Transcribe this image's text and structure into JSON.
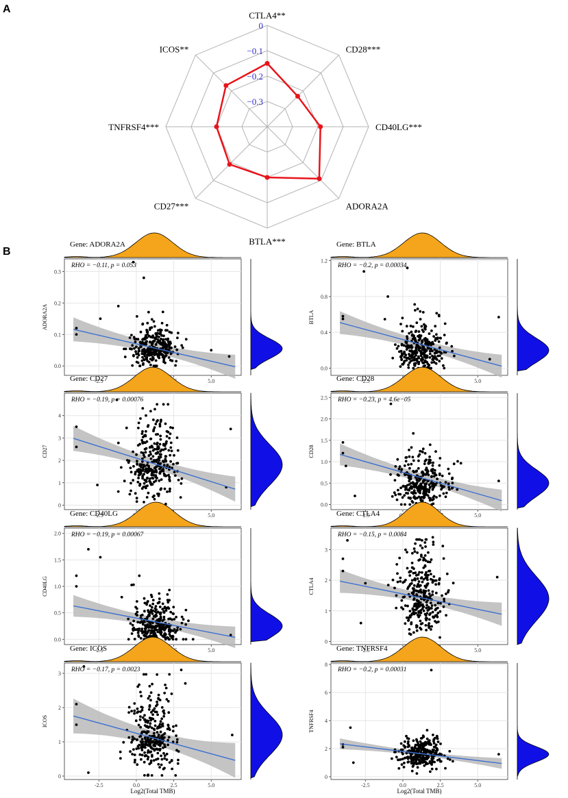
{
  "panel_labels": {
    "a": "A",
    "b": "B"
  },
  "colors": {
    "radar_line": "#e8141a",
    "radar_ring": "#b3b3b3",
    "radar_tick": "#2e2ecc",
    "density_top": "#f5a51b",
    "density_right": "#1010e6",
    "reg_line": "#3c6fd1",
    "ci_band": "#b5b5b5",
    "grid": "#e6e6e6"
  },
  "chart_data": [
    {
      "type": "radar",
      "panel": "A",
      "axes": [
        "CTLA4**",
        "CD28***",
        "CD40LG***",
        "ADORA2A",
        "BTLA***",
        "CD27***",
        "TNFRSF4***",
        "ICOS**"
      ],
      "values": [
        -0.15,
        -0.23,
        -0.19,
        -0.11,
        -0.2,
        -0.19,
        -0.2,
        -0.17
      ],
      "rlim": [
        -0.4,
        0
      ],
      "ticks": [
        0,
        -0.1,
        -0.2,
        -0.3
      ],
      "tick_labels": [
        "0",
        "−0.1",
        "−0.2",
        "−0.3"
      ]
    },
    {
      "type": "scatter",
      "panel": "B",
      "plots": [
        {
          "gene_label": "Gene: ADORA2A",
          "ylabel": "ADORA2A",
          "xlabel": "Log2(Total TMB)",
          "rho_label": "RHO = −0.11, p = 0.053",
          "xlim": [
            -4.8,
            7
          ],
          "ylim": [
            -0.03,
            0.34
          ],
          "xticks": [
            -2.5,
            0,
            2.5,
            5
          ],
          "xtick_labels": [
            "-2.5",
            "0.0",
            "2.5",
            "5.0"
          ],
          "yticks": [
            0,
            0.1,
            0.2,
            0.3
          ],
          "ytick_labels": [
            "0.0",
            "0.1",
            "0.2",
            "0.3"
          ],
          "reg": {
            "intercept": 0.07,
            "slope": -0.011,
            "x": [
              -4.2,
              6.6
            ],
            "ci": 0.015
          },
          "points": {
            "n": 300,
            "center": 1.2,
            "spread": 1.3,
            "y_mean": 0.055,
            "y_sd": 0.035,
            "y_min": 0.0
          },
          "outliers": [
            [
              -0.2,
              0.33
            ],
            [
              0.5,
              0.28
            ],
            [
              -4.0,
              0.1
            ],
            [
              -4.0,
              0.12
            ],
            [
              6.2,
              0.03
            ],
            [
              5.0,
              0.05
            ],
            [
              -1.2,
              0.19
            ],
            [
              -2.4,
              0.15
            ]
          ]
        },
        {
          "gene_label": "Gene: BTLA",
          "ylabel": "BTLA",
          "xlabel": "Log2(Total TMB)",
          "rho_label": "RHO = −0.2, p = 0.00034",
          "xlim": [
            -4.8,
            7
          ],
          "ylim": [
            -0.08,
            1.22
          ],
          "xticks": [
            -2.5,
            0,
            2.5,
            5
          ],
          "xtick_labels": [
            "-2.5",
            "0.0",
            "2.5",
            "5.0"
          ],
          "yticks": [
            0,
            0.4,
            0.8,
            1.2
          ],
          "ytick_labels": [
            "0.0",
            "0.4",
            "0.8",
            "1.2"
          ],
          "reg": {
            "intercept": 0.32,
            "slope": -0.045,
            "x": [
              -4.2,
              6.6
            ],
            "ci": 0.05
          },
          "points": {
            "n": 300,
            "center": 1.3,
            "spread": 1.3,
            "y_mean": 0.2,
            "y_sd": 0.15,
            "y_min": 0.0
          },
          "outliers": [
            [
              -4.0,
              0.58
            ],
            [
              -4.0,
              0.55
            ],
            [
              -2.6,
              1.08
            ],
            [
              6.4,
              0.57
            ],
            [
              -1.0,
              0.8
            ],
            [
              0.3,
              1.12
            ],
            [
              5.8,
              0.1
            ]
          ]
        },
        {
          "gene_label": "Gene: CD27",
          "ylabel": "CD27",
          "xlabel": "Log2(Total TMB)",
          "rho_label": "RHO = −0.19, p = 0.00076",
          "xlim": [
            -4.8,
            7
          ],
          "ylim": [
            -0.2,
            5.0
          ],
          "xticks": [
            -2.5,
            0,
            2.5,
            5
          ],
          "xtick_labels": [
            "-2.5",
            "0.0",
            "2.5",
            "5.0"
          ],
          "yticks": [
            0,
            1,
            2,
            3,
            4
          ],
          "ytick_labels": [
            "0",
            "1",
            "2",
            "3",
            "4"
          ],
          "reg": {
            "intercept": 2.1,
            "slope": -0.21,
            "x": [
              -4.2,
              6.6
            ],
            "ci": 0.22
          },
          "points": {
            "n": 300,
            "center": 1.1,
            "spread": 1.3,
            "y_mean": 1.8,
            "y_sd": 1.0,
            "y_min": 0.05
          },
          "outliers": [
            [
              -4.0,
              3.5
            ],
            [
              -4.0,
              2.6
            ],
            [
              -2.6,
              0.9
            ],
            [
              6.3,
              3.4
            ],
            [
              -1.3,
              4.7
            ],
            [
              6.0,
              0.8
            ]
          ]
        },
        {
          "gene_label": "Gene: CD28",
          "ylabel": "CD28",
          "xlabel": "Log2(Total TMB)",
          "rho_label": "RHO = −0.23, p = 4.6e−05",
          "xlim": [
            -4.8,
            7
          ],
          "ylim": [
            -0.12,
            2.6
          ],
          "xticks": [
            -2.5,
            0,
            2.5,
            5
          ],
          "xtick_labels": [
            "-2.5",
            "0.0",
            "2.5",
            "5.0"
          ],
          "yticks": [
            0,
            0.5,
            1,
            1.5,
            2,
            2.5
          ],
          "ytick_labels": [
            "0.0",
            "0.5",
            "1.0",
            "1.5",
            "2.0",
            "2.5"
          ],
          "reg": {
            "intercept": 0.75,
            "slope": -0.1,
            "x": [
              -4.2,
              6.6
            ],
            "ci": 0.1
          },
          "points": {
            "n": 300,
            "center": 1.3,
            "spread": 1.3,
            "y_mean": 0.5,
            "y_sd": 0.35,
            "y_min": 0.0
          },
          "outliers": [
            [
              -4.0,
              1.45
            ],
            [
              -4.0,
              1.2
            ],
            [
              -3.8,
              0.9
            ],
            [
              -0.8,
              2.35
            ],
            [
              6.4,
              0.55
            ],
            [
              -3.2,
              0.2
            ]
          ]
        },
        {
          "gene_label": "Gene: CD40LG",
          "ylabel": "CD40LG",
          "xlabel": "Log2(Total TMB)",
          "rho_label": "RHO = −0.19, p = 0.00067",
          "xlim": [
            -4.8,
            7
          ],
          "ylim": [
            -0.1,
            2.1
          ],
          "xticks": [
            -2.5,
            0,
            2.5,
            5
          ],
          "xtick_labels": [
            "-2.5",
            "0.0",
            "2.5",
            "5.0"
          ],
          "yticks": [
            0,
            0.5,
            1,
            1.5,
            2
          ],
          "ytick_labels": [
            "0.0",
            "0.5",
            "1.0",
            "1.5",
            "2.0"
          ],
          "reg": {
            "intercept": 0.4,
            "slope": -0.055,
            "x": [
              -4.2,
              6.6
            ],
            "ci": 0.08
          },
          "points": {
            "n": 300,
            "center": 1.3,
            "spread": 1.3,
            "y_mean": 0.25,
            "y_sd": 0.25,
            "y_min": 0.0
          },
          "outliers": [
            [
              -4.0,
              1.2
            ],
            [
              -4.0,
              1.0
            ],
            [
              -3.2,
              1.7
            ],
            [
              -2.4,
              1.55
            ],
            [
              6.3,
              0.08
            ],
            [
              0.2,
              1.2
            ]
          ]
        },
        {
          "gene_label": "Gene: CTLA4",
          "ylabel": "CTLA4",
          "xlabel": "Log2(Total TMB)",
          "rho_label": "RHO = −0.15, p = 0.0084",
          "xlim": [
            -4.8,
            7
          ],
          "ylim": [
            -0.1,
            3.7
          ],
          "xticks": [
            -2.5,
            0,
            2.5,
            5
          ],
          "xtick_labels": [
            "-2.5",
            "0.0",
            "2.5",
            "5.0"
          ],
          "yticks": [
            0,
            1,
            2,
            3
          ],
          "ytick_labels": [
            "0",
            "1",
            "2",
            "3"
          ],
          "reg": {
            "intercept": 1.55,
            "slope": -0.1,
            "x": [
              -4.2,
              6.6
            ],
            "ci": 0.15
          },
          "points": {
            "n": 300,
            "center": 1.3,
            "spread": 1.2,
            "y_mean": 1.4,
            "y_sd": 0.8,
            "y_min": 0.02
          },
          "outliers": [
            [
              -4.0,
              2.7
            ],
            [
              -4.0,
              2.3
            ],
            [
              -3.7,
              3.3
            ],
            [
              -2.5,
              1.9
            ],
            [
              -2.8,
              0.6
            ],
            [
              6.3,
              2.1
            ],
            [
              2.0,
              3.4
            ]
          ]
        },
        {
          "gene_label": "Gene: ICOS",
          "ylabel": "ICOS",
          "xlabel": "Log2(Total TMB)",
          "rho_label": "RHO = −0.17, p = 0.0023",
          "xlim": [
            -4.8,
            7
          ],
          "ylim": [
            -0.1,
            3.3
          ],
          "xticks": [
            -2.5,
            0,
            2.5,
            5
          ],
          "xtick_labels": [
            "-2.5",
            "0.0",
            "2.5",
            "5.0"
          ],
          "yticks": [
            0,
            1,
            2,
            3
          ],
          "ytick_labels": [
            "0",
            "1",
            "2",
            "3"
          ],
          "reg": {
            "intercept": 1.25,
            "slope": -0.12,
            "x": [
              -4.2,
              6.6
            ],
            "ci": 0.2
          },
          "points": {
            "n": 300,
            "center": 1.1,
            "spread": 1.3,
            "y_mean": 1.2,
            "y_sd": 0.65,
            "y_min": 0.02
          },
          "outliers": [
            [
              -4.0,
              2.1
            ],
            [
              -4.0,
              1.5
            ],
            [
              -3.5,
              3.2
            ],
            [
              -3.2,
              0.1
            ],
            [
              6.4,
              1.2
            ],
            [
              3.0,
              3.1
            ]
          ]
        },
        {
          "gene_label": "Gene: TNFRSF4",
          "ylabel": "TNFRSF4",
          "xlabel": "Log2(Total TMB)",
          "rho_label": "RHO = −0.2, p = 0.00031",
          "xlim": [
            -4.8,
            7
          ],
          "ylim": [
            -0.2,
            8.1
          ],
          "xticks": [
            -2.5,
            0,
            2.5,
            5
          ],
          "xtick_labels": [
            "-2.5",
            "0.0",
            "2.5",
            "5.0"
          ],
          "yticks": [
            0,
            2,
            4,
            6,
            8
          ],
          "ytick_labels": [
            "0",
            "2",
            "4",
            "6",
            "8"
          ],
          "reg": {
            "intercept": 1.8,
            "slope": -0.13,
            "x": [
              -4.2,
              6.6
            ],
            "ci": 0.15
          },
          "points": {
            "n": 300,
            "center": 1.3,
            "spread": 1.3,
            "y_mean": 1.6,
            "y_sd": 0.6,
            "y_min": 0.2
          },
          "outliers": [
            [
              -4.0,
              2.3
            ],
            [
              -4.0,
              2.1
            ],
            [
              -3.5,
              3.5
            ],
            [
              1.9,
              7.6
            ],
            [
              6.4,
              1.6
            ],
            [
              -3.3,
              1.0
            ]
          ]
        }
      ]
    }
  ]
}
